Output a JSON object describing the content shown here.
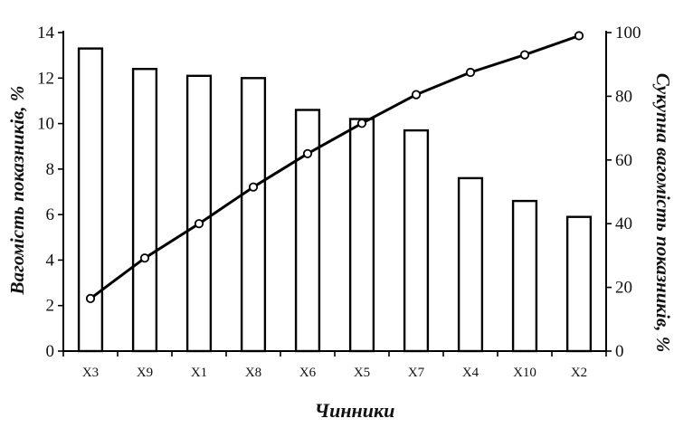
{
  "chart_data": {
    "type": "bar",
    "categories": [
      "X3",
      "X9",
      "X1",
      "X8",
      "X6",
      "X5",
      "X7",
      "X4",
      "X10",
      "X2"
    ],
    "xlabel": "Чинники",
    "ylabel": "Вагомість показників, %",
    "y2label": "Сукупна вагомість показників, %",
    "ylim": [
      0,
      14
    ],
    "y2lim": [
      0,
      100
    ],
    "yticks": [
      0,
      2,
      4,
      6,
      8,
      10,
      12,
      14
    ],
    "y2ticks": [
      0,
      20,
      40,
      60,
      80,
      100
    ],
    "grid": false,
    "legend": "none",
    "series": [
      {
        "type": "bar",
        "axis": "left",
        "values": [
          13.3,
          12.4,
          12.1,
          12.0,
          10.6,
          10.2,
          9.7,
          7.6,
          6.6,
          5.9
        ]
      },
      {
        "type": "line",
        "axis": "right",
        "marker": "circle",
        "values": [
          16.5,
          29.2,
          40.0,
          51.5,
          62.0,
          71.5,
          80.5,
          87.5,
          93.0,
          99.0
        ]
      }
    ],
    "colors": {
      "bar_fill": "#ffffff",
      "bar_stroke": "#000000",
      "line": "#000000"
    }
  }
}
